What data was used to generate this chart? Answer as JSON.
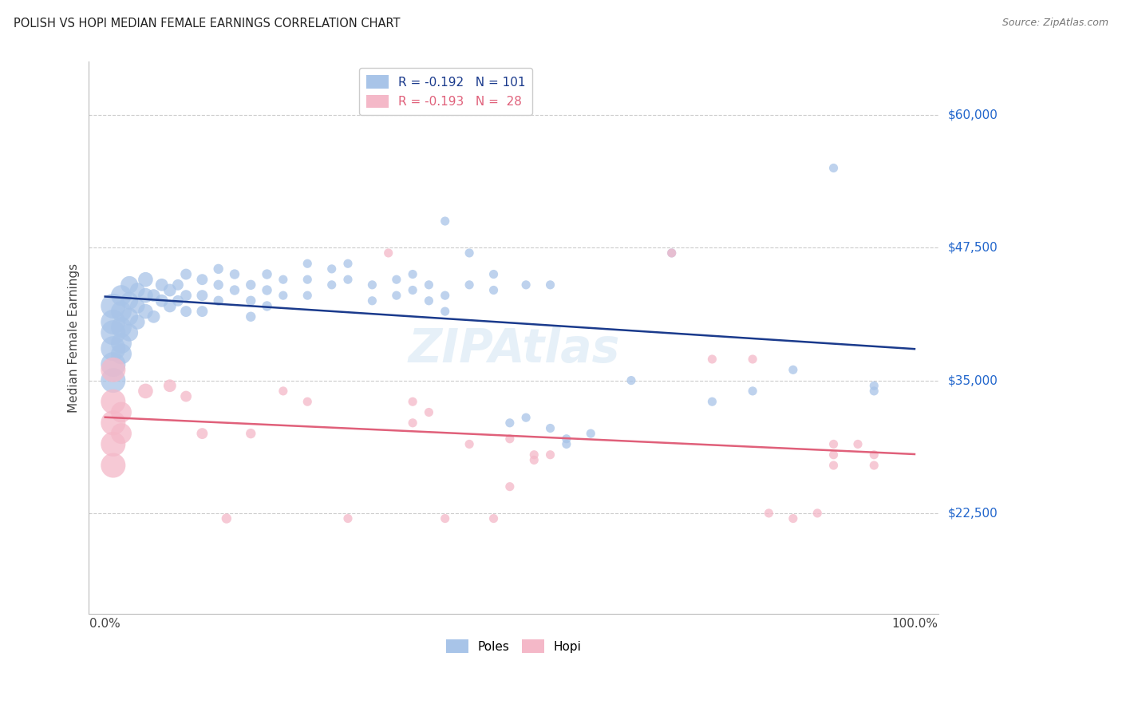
{
  "title": "POLISH VS HOPI MEDIAN FEMALE EARNINGS CORRELATION CHART",
  "source": "Source: ZipAtlas.com",
  "ylabel": "Median Female Earnings",
  "yticks_labels": [
    "$22,500",
    "$35,000",
    "$47,500",
    "$60,000"
  ],
  "yticks_values": [
    22500,
    35000,
    47500,
    60000
  ],
  "xticks_labels": [
    "0.0%",
    "100.0%"
  ],
  "xlim": [
    0,
    100
  ],
  "ylim": [
    13000,
    65000
  ],
  "poles_color": "#a8c4e8",
  "hopi_color": "#f4b8c8",
  "poles_line_color": "#1a3a8c",
  "hopi_line_color": "#e0607a",
  "poles_data": [
    [
      1,
      42000
    ],
    [
      1,
      40500
    ],
    [
      1,
      39500
    ],
    [
      1,
      38000
    ],
    [
      1,
      36500
    ],
    [
      1,
      35000
    ],
    [
      2,
      43000
    ],
    [
      2,
      41500
    ],
    [
      2,
      40000
    ],
    [
      2,
      38500
    ],
    [
      2,
      37500
    ],
    [
      3,
      44000
    ],
    [
      3,
      42500
    ],
    [
      3,
      41000
    ],
    [
      3,
      39500
    ],
    [
      4,
      43500
    ],
    [
      4,
      42000
    ],
    [
      4,
      40500
    ],
    [
      5,
      44500
    ],
    [
      5,
      43000
    ],
    [
      5,
      41500
    ],
    [
      6,
      43000
    ],
    [
      6,
      41000
    ],
    [
      7,
      44000
    ],
    [
      7,
      42500
    ],
    [
      8,
      43500
    ],
    [
      8,
      42000
    ],
    [
      9,
      44000
    ],
    [
      9,
      42500
    ],
    [
      10,
      45000
    ],
    [
      10,
      43000
    ],
    [
      10,
      41500
    ],
    [
      12,
      44500
    ],
    [
      12,
      43000
    ],
    [
      12,
      41500
    ],
    [
      14,
      45500
    ],
    [
      14,
      44000
    ],
    [
      14,
      42500
    ],
    [
      16,
      45000
    ],
    [
      16,
      43500
    ],
    [
      18,
      44000
    ],
    [
      18,
      42500
    ],
    [
      18,
      41000
    ],
    [
      20,
      45000
    ],
    [
      20,
      43500
    ],
    [
      20,
      42000
    ],
    [
      22,
      44500
    ],
    [
      22,
      43000
    ],
    [
      25,
      46000
    ],
    [
      25,
      44500
    ],
    [
      25,
      43000
    ],
    [
      28,
      45500
    ],
    [
      28,
      44000
    ],
    [
      30,
      46000
    ],
    [
      30,
      44500
    ],
    [
      33,
      44000
    ],
    [
      33,
      42500
    ],
    [
      36,
      44500
    ],
    [
      36,
      43000
    ],
    [
      38,
      45000
    ],
    [
      38,
      43500
    ],
    [
      40,
      44000
    ],
    [
      40,
      42500
    ],
    [
      42,
      50000
    ],
    [
      42,
      43000
    ],
    [
      42,
      41500
    ],
    [
      45,
      47000
    ],
    [
      45,
      44000
    ],
    [
      48,
      45000
    ],
    [
      48,
      43500
    ],
    [
      50,
      31000
    ],
    [
      52,
      44000
    ],
    [
      52,
      31500
    ],
    [
      55,
      44000
    ],
    [
      55,
      30500
    ],
    [
      57,
      29500
    ],
    [
      57,
      29000
    ],
    [
      60,
      30000
    ],
    [
      65,
      35000
    ],
    [
      70,
      47000
    ],
    [
      75,
      33000
    ],
    [
      80,
      34000
    ],
    [
      85,
      36000
    ],
    [
      90,
      55000
    ],
    [
      95,
      34500
    ],
    [
      95,
      34000
    ]
  ],
  "hopi_data": [
    [
      1,
      36000
    ],
    [
      1,
      33000
    ],
    [
      1,
      31000
    ],
    [
      1,
      29000
    ],
    [
      1,
      27000
    ],
    [
      2,
      32000
    ],
    [
      2,
      30000
    ],
    [
      5,
      34000
    ],
    [
      8,
      34500
    ],
    [
      10,
      33500
    ],
    [
      12,
      30000
    ],
    [
      15,
      22000
    ],
    [
      18,
      30000
    ],
    [
      22,
      34000
    ],
    [
      25,
      33000
    ],
    [
      30,
      22000
    ],
    [
      35,
      47000
    ],
    [
      38,
      33000
    ],
    [
      38,
      31000
    ],
    [
      40,
      32000
    ],
    [
      42,
      22000
    ],
    [
      45,
      29000
    ],
    [
      48,
      22000
    ],
    [
      50,
      29500
    ],
    [
      50,
      25000
    ],
    [
      53,
      28000
    ],
    [
      53,
      27500
    ],
    [
      55,
      28000
    ],
    [
      70,
      47000
    ],
    [
      75,
      37000
    ],
    [
      80,
      37000
    ],
    [
      82,
      22500
    ],
    [
      85,
      22000
    ],
    [
      88,
      22500
    ],
    [
      90,
      29000
    ],
    [
      90,
      28000
    ],
    [
      90,
      27000
    ],
    [
      93,
      29000
    ],
    [
      95,
      28000
    ],
    [
      95,
      27000
    ]
  ],
  "background_color": "#ffffff",
  "grid_color": "#cccccc"
}
